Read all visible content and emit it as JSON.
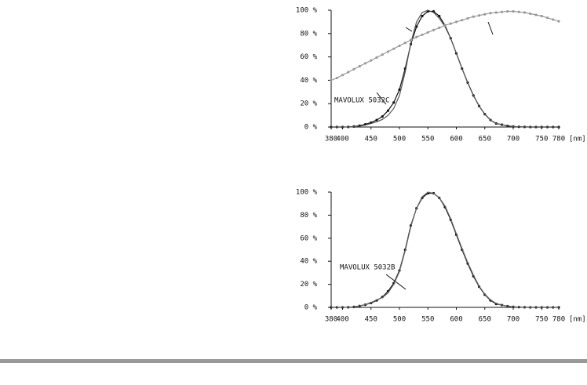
{
  "chart_data": [
    {
      "type": "line",
      "annotation": "MAVOLUX 5032C",
      "xlabel": "[nm]",
      "xlim": [
        380,
        780
      ],
      "xticks": [
        380,
        400,
        450,
        500,
        550,
        600,
        650,
        700,
        750,
        780
      ],
      "ylim": [
        0,
        100
      ],
      "yticks": [
        {
          "value": 0,
          "label": "0 %"
        },
        {
          "value": 20,
          "label": "20 %"
        },
        {
          "value": 40,
          "label": "40 %"
        },
        {
          "value": 60,
          "label": "60 %"
        },
        {
          "value": 80,
          "label": "80 %"
        },
        {
          "value": 100,
          "label": "100 %"
        }
      ],
      "x": [
        380,
        390,
        400,
        410,
        420,
        430,
        440,
        450,
        460,
        470,
        480,
        490,
        500,
        510,
        520,
        530,
        540,
        550,
        560,
        570,
        580,
        590,
        600,
        610,
        620,
        630,
        640,
        650,
        660,
        670,
        680,
        690,
        700,
        710,
        720,
        730,
        740,
        750,
        760,
        770,
        780
      ],
      "series": [
        {
          "color": "#111111",
          "markers": true,
          "values": [
            0,
            0,
            0,
            0.1,
            0.4,
            1.2,
            2.3,
            3.8,
            6,
            9,
            14,
            21,
            32,
            50,
            71,
            86,
            95,
            99,
            99,
            95,
            87,
            76,
            63,
            50,
            38,
            27,
            18,
            11,
            6,
            3,
            2,
            1,
            0.4,
            0.2,
            0.1,
            0,
            0,
            0,
            0,
            0,
            0
          ]
        },
        {
          "color": "#555555",
          "markers": false,
          "values": [
            0,
            0,
            0,
            0.1,
            0.3,
            0.8,
            1.6,
            3,
            4.5,
            6.5,
            10,
            16,
            27,
            47,
            72,
            90,
            98,
            100,
            98,
            93,
            86,
            76,
            63,
            50,
            38,
            27,
            18,
            11,
            6,
            3,
            2,
            1,
            0.4,
            0.2,
            0.1,
            0,
            0,
            0,
            0,
            0,
            0
          ]
        },
        {
          "color": "#999999",
          "markers": true,
          "values": [
            40,
            42,
            44.5,
            47,
            49.5,
            52,
            54.5,
            57,
            59.5,
            62,
            64.5,
            67,
            69.5,
            72,
            74.5,
            77,
            79,
            81,
            83,
            85,
            87,
            88.5,
            90,
            91.5,
            93,
            94.5,
            95.5,
            96.5,
            97.5,
            98,
            98.5,
            99,
            99,
            98.5,
            98,
            97,
            96,
            95,
            93.5,
            92,
            90.5
          ]
        }
      ]
    },
    {
      "type": "line",
      "annotation": "MAVOLUX 5032B",
      "xlabel": "[nm]",
      "xlim": [
        380,
        780
      ],
      "xticks": [
        380,
        400,
        450,
        500,
        550,
        600,
        650,
        700,
        750,
        780
      ],
      "ylim": [
        0,
        100
      ],
      "yticks": [
        {
          "value": 0,
          "label": "0 %"
        },
        {
          "value": 20,
          "label": "20 %"
        },
        {
          "value": 40,
          "label": "40 %"
        },
        {
          "value": 60,
          "label": "60 %"
        },
        {
          "value": 80,
          "label": "80 %"
        },
        {
          "value": 100,
          "label": "100 %"
        }
      ],
      "x": [
        380,
        390,
        400,
        410,
        420,
        430,
        440,
        450,
        460,
        470,
        480,
        490,
        500,
        510,
        520,
        530,
        540,
        550,
        560,
        570,
        580,
        590,
        600,
        610,
        620,
        630,
        640,
        650,
        660,
        670,
        680,
        690,
        700,
        710,
        720,
        730,
        740,
        750,
        760,
        770,
        780
      ],
      "series": [
        {
          "color": "#111111",
          "markers": true,
          "values": [
            0,
            0,
            0,
            0.1,
            0.4,
            1.2,
            2.3,
            3.8,
            6,
            9,
            14,
            21,
            32,
            50,
            71,
            86,
            95,
            99,
            99,
            95,
            87,
            76,
            63,
            50,
            38,
            27,
            18,
            11,
            6,
            3,
            2,
            1,
            0.4,
            0.2,
            0.1,
            0,
            0,
            0,
            0,
            0,
            0
          ]
        },
        {
          "color": "#666666",
          "markers": false,
          "values": [
            0,
            0,
            0,
            0.1,
            0.5,
            1.3,
            2.5,
            4.2,
            6.5,
            8.5,
            12.5,
            20,
            31,
            49,
            70,
            86,
            96,
            100,
            99,
            95,
            88,
            77,
            64,
            51,
            39,
            28,
            18.5,
            11.5,
            6.5,
            3.5,
            2,
            1,
            0.5,
            0.2,
            0.1,
            0,
            0,
            0,
            0,
            0,
            0
          ]
        }
      ]
    }
  ]
}
